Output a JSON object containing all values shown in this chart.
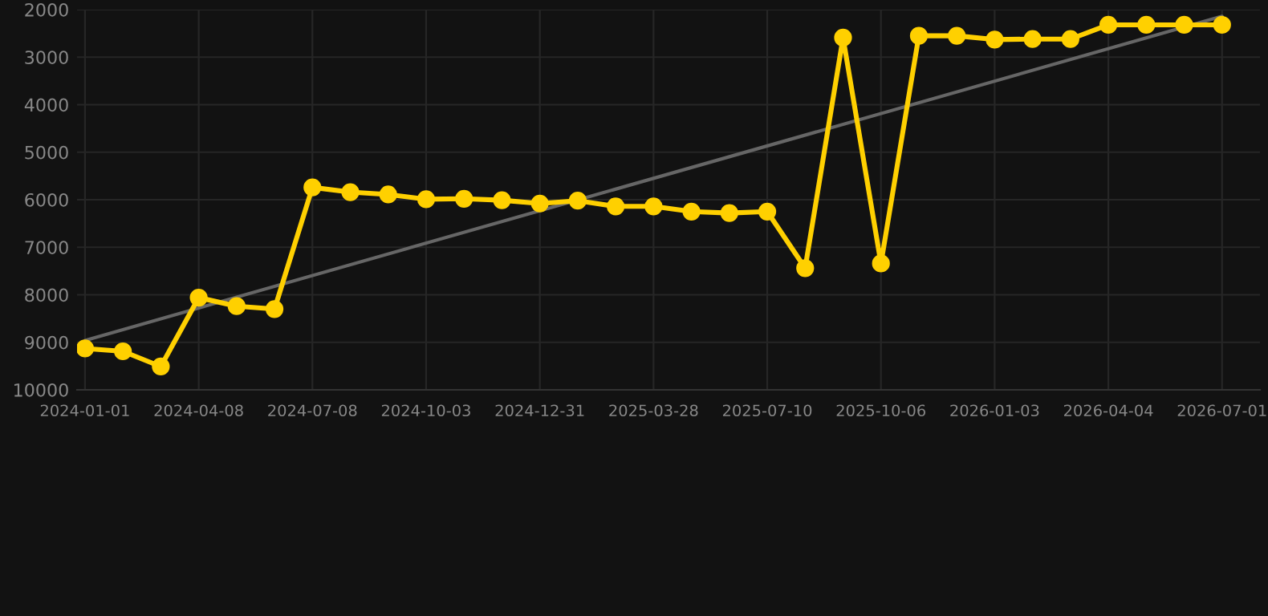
{
  "chart_data": {
    "type": "line",
    "categories": [
      "2024-01-01",
      null,
      null,
      "2024-04-08",
      null,
      null,
      "2024-07-08",
      null,
      null,
      "2024-10-03",
      null,
      null,
      "2024-12-31",
      null,
      null,
      "2025-03-28",
      null,
      null,
      "2025-07-10",
      null,
      null,
      "2025-10-06",
      null,
      null,
      "2026-01-03",
      null,
      null,
      "2026-04-04",
      null,
      null,
      "2026-07-01"
    ],
    "series": [
      {
        "color": "#ffd000",
        "marker": "circle",
        "values": [
          9130,
          9190,
          9510,
          8060,
          8240,
          8300,
          5740,
          5840,
          5890,
          5990,
          5980,
          6010,
          6080,
          6020,
          6140,
          6140,
          6250,
          6280,
          6250,
          7440,
          2590,
          7340,
          2550,
          2550,
          2630,
          2620,
          2620,
          2320,
          2320,
          2320,
          2320
        ]
      },
      {
        "type": "line",
        "color": "#666666",
        "marker": "none",
        "values": [
          8960,
          null,
          null,
          null,
          null,
          null,
          null,
          null,
          null,
          null,
          null,
          null,
          null,
          null,
          null,
          null,
          null,
          null,
          null,
          null,
          null,
          null,
          null,
          null,
          null,
          null,
          null,
          null,
          null,
          null,
          2140
        ]
      }
    ],
    "ylim": [
      10000,
      2000
    ],
    "yticks": [
      2000,
      3000,
      4000,
      5000,
      6000,
      7000,
      8000,
      9000,
      10000
    ],
    "grid": true,
    "legend": false
  }
}
